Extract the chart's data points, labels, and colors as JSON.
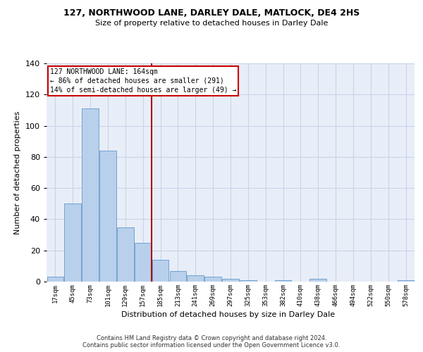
{
  "title": "127, NORTHWOOD LANE, DARLEY DALE, MATLOCK, DE4 2HS",
  "subtitle": "Size of property relative to detached houses in Darley Dale",
  "xlabel": "Distribution of detached houses by size in Darley Dale",
  "ylabel": "Number of detached properties",
  "footer_line1": "Contains HM Land Registry data © Crown copyright and database right 2024.",
  "footer_line2": "Contains public sector information licensed under the Open Government Licence v3.0.",
  "bar_labels": [
    "17sqm",
    "45sqm",
    "73sqm",
    "101sqm",
    "129sqm",
    "157sqm",
    "185sqm",
    "213sqm",
    "241sqm",
    "269sqm",
    "297sqm",
    "325sqm",
    "353sqm",
    "382sqm",
    "410sqm",
    "438sqm",
    "466sqm",
    "494sqm",
    "522sqm",
    "550sqm",
    "578sqm"
  ],
  "bar_values": [
    3,
    50,
    111,
    84,
    35,
    25,
    14,
    7,
    4,
    3,
    2,
    1,
    0,
    1,
    0,
    2,
    0,
    0,
    0,
    0,
    1
  ],
  "bar_color": "#b8d0eb",
  "bar_edge_color": "#6699cc",
  "grid_color": "#c8d4e8",
  "bg_color": "#e8eef8",
  "vline_x_idx": 6,
  "vline_color": "#aa0000",
  "annotation_line1": "127 NORTHWOOD LANE: 164sqm",
  "annotation_line2": "← 86% of detached houses are smaller (291)",
  "annotation_line3": "14% of semi-detached houses are larger (49) →",
  "annotation_box_color": "#cc0000",
  "ylim": [
    0,
    140
  ],
  "yticks": [
    0,
    20,
    40,
    60,
    80,
    100,
    120,
    140
  ]
}
